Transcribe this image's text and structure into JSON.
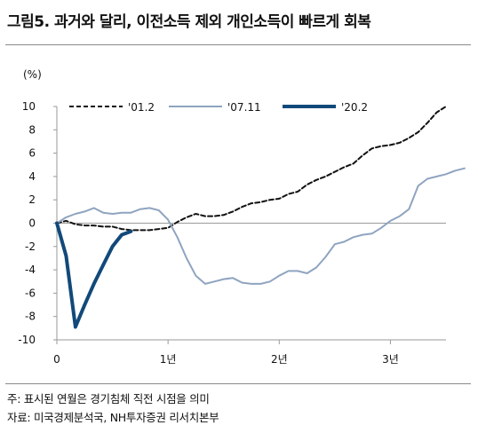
{
  "title": "그림5. 과거와 달리, 이전소득 제외 개인소득이 빠르게 회복",
  "notes": [
    "주: 표시된 연월은 경기침체 직전 시점을 의미",
    "자료: 미국경제분석국, NH투자증권 리서치본부"
  ],
  "chart_data": {
    "type": "line",
    "unit_label": "(%)",
    "ylim": [
      -10,
      10
    ],
    "yticks": [
      10,
      8,
      6,
      4,
      2,
      0,
      -2,
      -4,
      -6,
      -8,
      -10
    ],
    "xlim": [
      0,
      42
    ],
    "xticks": [
      {
        "value": 0,
        "label": "0"
      },
      {
        "value": 12,
        "label": "1년"
      },
      {
        "value": 24,
        "label": "2년"
      },
      {
        "value": 36,
        "label": "3년"
      }
    ],
    "grid": false,
    "legend_position": "top",
    "series": [
      {
        "name": "'01.2",
        "color": "#111111",
        "style": "dashed",
        "x": [
          0,
          1,
          2,
          3,
          4,
          5,
          6,
          7,
          8,
          9,
          10,
          11,
          12,
          13,
          14,
          15,
          16,
          17,
          18,
          19,
          20,
          21,
          22,
          23,
          24,
          25,
          26,
          27,
          28,
          29,
          30,
          31,
          32,
          33,
          34,
          35,
          36,
          37,
          38,
          39,
          40,
          41,
          42
        ],
        "values": [
          0,
          0.2,
          -0.1,
          -0.2,
          -0.2,
          -0.3,
          -0.3,
          -0.5,
          -0.6,
          -0.6,
          -0.6,
          -0.5,
          -0.4,
          0.1,
          0.5,
          0.8,
          0.6,
          0.6,
          0.7,
          1.0,
          1.4,
          1.7,
          1.8,
          2.0,
          2.1,
          2.5,
          2.7,
          3.3,
          3.7,
          4.0,
          4.4,
          4.8,
          5.1,
          5.8,
          6.4,
          6.6,
          6.7,
          6.9,
          7.3,
          7.8,
          8.6,
          9.5,
          10.0
        ]
      },
      {
        "name": "'07.11",
        "color": "#8fa4c0",
        "style": "solid",
        "x": [
          0,
          1,
          2,
          3,
          4,
          5,
          6,
          7,
          8,
          9,
          10,
          11,
          12,
          13,
          14,
          15,
          16,
          17,
          18,
          19,
          20,
          21,
          22,
          23,
          24,
          25,
          26,
          27,
          28,
          29,
          30,
          31,
          32,
          33,
          34,
          35,
          36,
          37,
          38,
          39,
          40,
          41,
          42,
          43,
          44
        ],
        "values": [
          0,
          0.5,
          0.8,
          1.0,
          1.3,
          0.9,
          0.8,
          0.9,
          0.9,
          1.2,
          1.3,
          1.1,
          0.3,
          -1.2,
          -3.0,
          -4.5,
          -5.2,
          -5.0,
          -4.8,
          -4.7,
          -5.1,
          -5.2,
          -5.2,
          -5.0,
          -4.5,
          -4.1,
          -4.1,
          -4.3,
          -3.8,
          -2.9,
          -1.8,
          -1.6,
          -1.2,
          -1.0,
          -0.9,
          -0.4,
          0.2,
          0.6,
          1.2,
          3.2,
          3.8,
          4.0,
          4.2,
          4.5,
          4.7
        ]
      },
      {
        "name": "'20.2",
        "color": "#12497a",
        "style": "solid-thick",
        "x": [
          0,
          1,
          2,
          3,
          4,
          5,
          6,
          7,
          8
        ],
        "values": [
          0,
          -2.8,
          -8.9,
          -7.0,
          -5.2,
          -3.6,
          -2.0,
          -1.0,
          -0.7
        ]
      }
    ]
  }
}
